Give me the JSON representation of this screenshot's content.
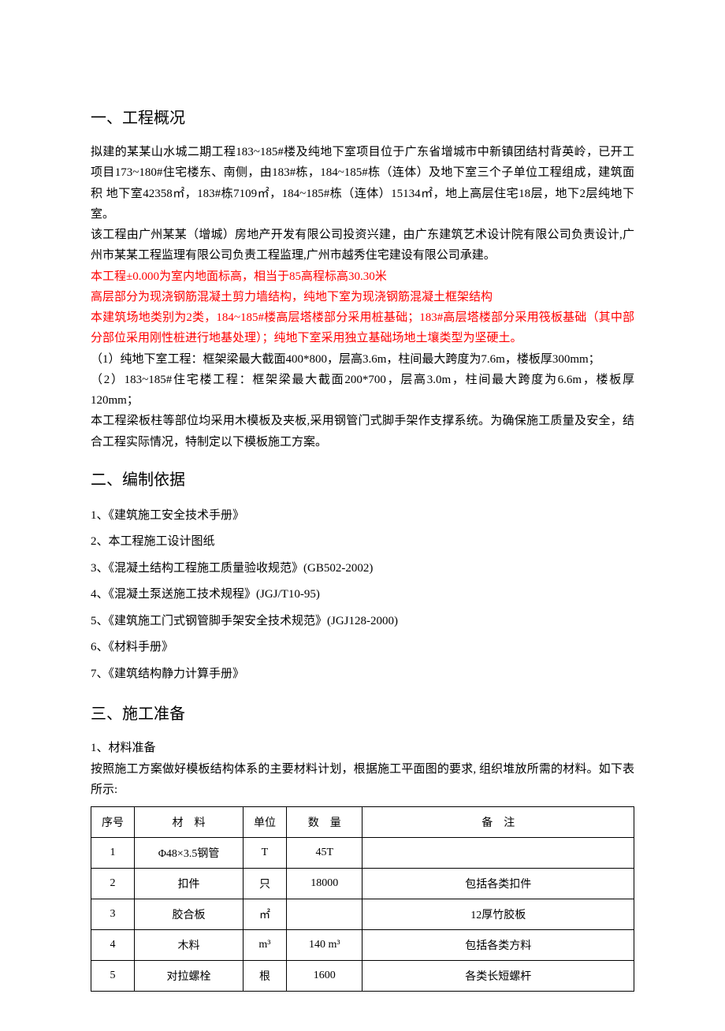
{
  "section1": {
    "heading": "一、工程概况",
    "para1": "拟建的某某山水城二期工程183~185#楼及纯地下室项目位于广东省增城市中新镇团结村背英岭，已开工项目173~180#住宅楼东、南侧，由183#栋，184~185#栋（连体）及地下室三个子单位工程组成，建筑面积 地下室42358㎡，183#栋7109㎡，184~185#栋（连体）15134㎡，地上高层住宅18层，地下2层纯地下室。",
    "para2": "该工程由广州某某（增城）房地产开发有限公司投资兴建，由广东建筑艺术设计院有限公司负责设计,广州市某某工程监理有限公司负责工程监理,广州市越秀住宅建设有限公司承建。",
    "red1": "本工程±0.000为室内地面标高，相当于85高程标高30.30米",
    "red2": "高层部分为现浇钢筋混凝土剪力墙结构，纯地下室为现浇钢筋混凝土框架结构",
    "red3": "本建筑场地类别为2类，184~185#楼高层塔楼部分采用桩基础；183#高层塔楼部分采用筏板基础（其中部分部位采用刚性桩进行地基处理）；纯地下室采用独立基础场地土壤类型为坚硬土。",
    "para3": "（1）纯地下室工程：框架梁最大截面400*800，层高3.6m，柱间最大跨度为7.6m，楼板厚300mm；",
    "para4": "（2）183~185#住宅楼工程：框架梁最大截面200*700，层高3.0m，柱间最大跨度为6.6m，楼板厚120mm；",
    "para5": "本工程梁板柱等部位均采用木模板及夹板,采用钢管门式脚手架作支撑系统。为确保施工质量及安全，结合工程实际情况，特制定以下模板施工方案。"
  },
  "section2": {
    "heading": "二、编制依据",
    "items": [
      "1、《建筑施工安全技术手册》",
      "2、本工程施工设计图纸",
      "3、《混凝土结构工程施工质量验收规范》(GB502-2002)",
      "4、《混凝土泵送施工技术规程》(JGJ/T10-95)",
      "5、《建筑施工门式钢管脚手架安全技术规范》(JGJ128-2000)",
      "6、《材料手册》",
      "7、《建筑结构静力计算手册》"
    ]
  },
  "section3": {
    "heading": "三、施工准备",
    "sub1": "1、材料准备",
    "sub2": "按照施工方案做好模板结构体系的主要材料计划，根据施工平面图的要求, 组织堆放所需的材料。如下表所示:",
    "table": {
      "headers": {
        "seq": "序号",
        "material": "材　料",
        "unit": "单位",
        "quantity": "数　量",
        "note": "备　注"
      },
      "rows": [
        {
          "seq": "1",
          "material": "Φ48×3.5钢管",
          "unit": "T",
          "quantity": "45T",
          "note": ""
        },
        {
          "seq": "2",
          "material": "扣件",
          "unit": "只",
          "quantity": "18000",
          "note": "包括各类扣件"
        },
        {
          "seq": "3",
          "material": "胶合板",
          "unit": "㎡",
          "quantity": "",
          "note": "12厚竹胶板"
        },
        {
          "seq": "4",
          "material": "木料",
          "unit": "m³",
          "quantity": "140 m³",
          "note": "包括各类方料"
        },
        {
          "seq": "5",
          "material": "对拉螺栓",
          "unit": "根",
          "quantity": "1600",
          "note": "各类长短螺杆"
        }
      ]
    }
  },
  "colors": {
    "text": "#000000",
    "red": "#ff0000",
    "border": "#000000",
    "background": "#ffffff"
  }
}
